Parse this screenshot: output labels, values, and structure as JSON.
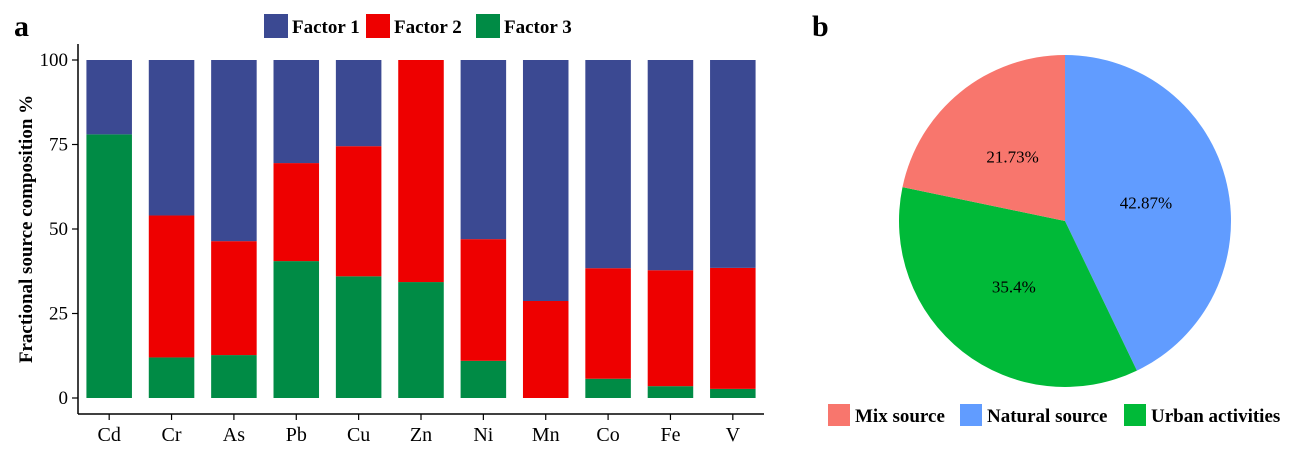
{
  "panel_a_label": "a",
  "panel_b_label": "b",
  "chart_data": [
    {
      "type": "bar",
      "stacked": true,
      "categories": [
        "Cd",
        "Cr",
        "As",
        "Pb",
        "Cu",
        "Zn",
        "Ni",
        "Mn",
        "Co",
        "Fe",
        "V"
      ],
      "series": [
        {
          "name": "Factor 3",
          "color": "#008B45",
          "values": [
            78,
            12,
            12.7,
            40.5,
            36,
            34.3,
            11,
            0,
            5.7,
            3.5,
            2.7
          ]
        },
        {
          "name": "Factor 2",
          "color": "#EE0000",
          "values": [
            0,
            42,
            33.7,
            29,
            38.5,
            65.7,
            36,
            28.7,
            32.7,
            34.3,
            35.8
          ]
        },
        {
          "name": "Factor 1",
          "color": "#3B4992",
          "values": [
            22,
            46,
            53.6,
            30.5,
            25.5,
            0,
            53,
            71.3,
            61.6,
            62.2,
            61.5
          ]
        }
      ],
      "legend_order": [
        "Factor 1",
        "Factor 2",
        "Factor 3"
      ],
      "legend_position": "top",
      "ylabel": "Fractional source composition %",
      "xlabel": "",
      "ylim": [
        0,
        100
      ],
      "yticks": [
        "0",
        "25",
        "50",
        "75",
        "100"
      ],
      "grid": false
    },
    {
      "type": "pie",
      "labels": [
        "Natural source",
        "Urban activities",
        "Mix source"
      ],
      "values": [
        42.87,
        35.4,
        21.73
      ],
      "data_labels": [
        "42.87%",
        "35.4%",
        "21.73%"
      ],
      "colors": [
        "#619CFF",
        "#00BA38",
        "#F8766D"
      ],
      "legend_order": [
        "Mix source",
        "Natural source",
        "Urban activities"
      ],
      "legend_colors": [
        "#F8766D",
        "#619CFF",
        "#00BA38"
      ],
      "legend_position": "bottom"
    }
  ]
}
